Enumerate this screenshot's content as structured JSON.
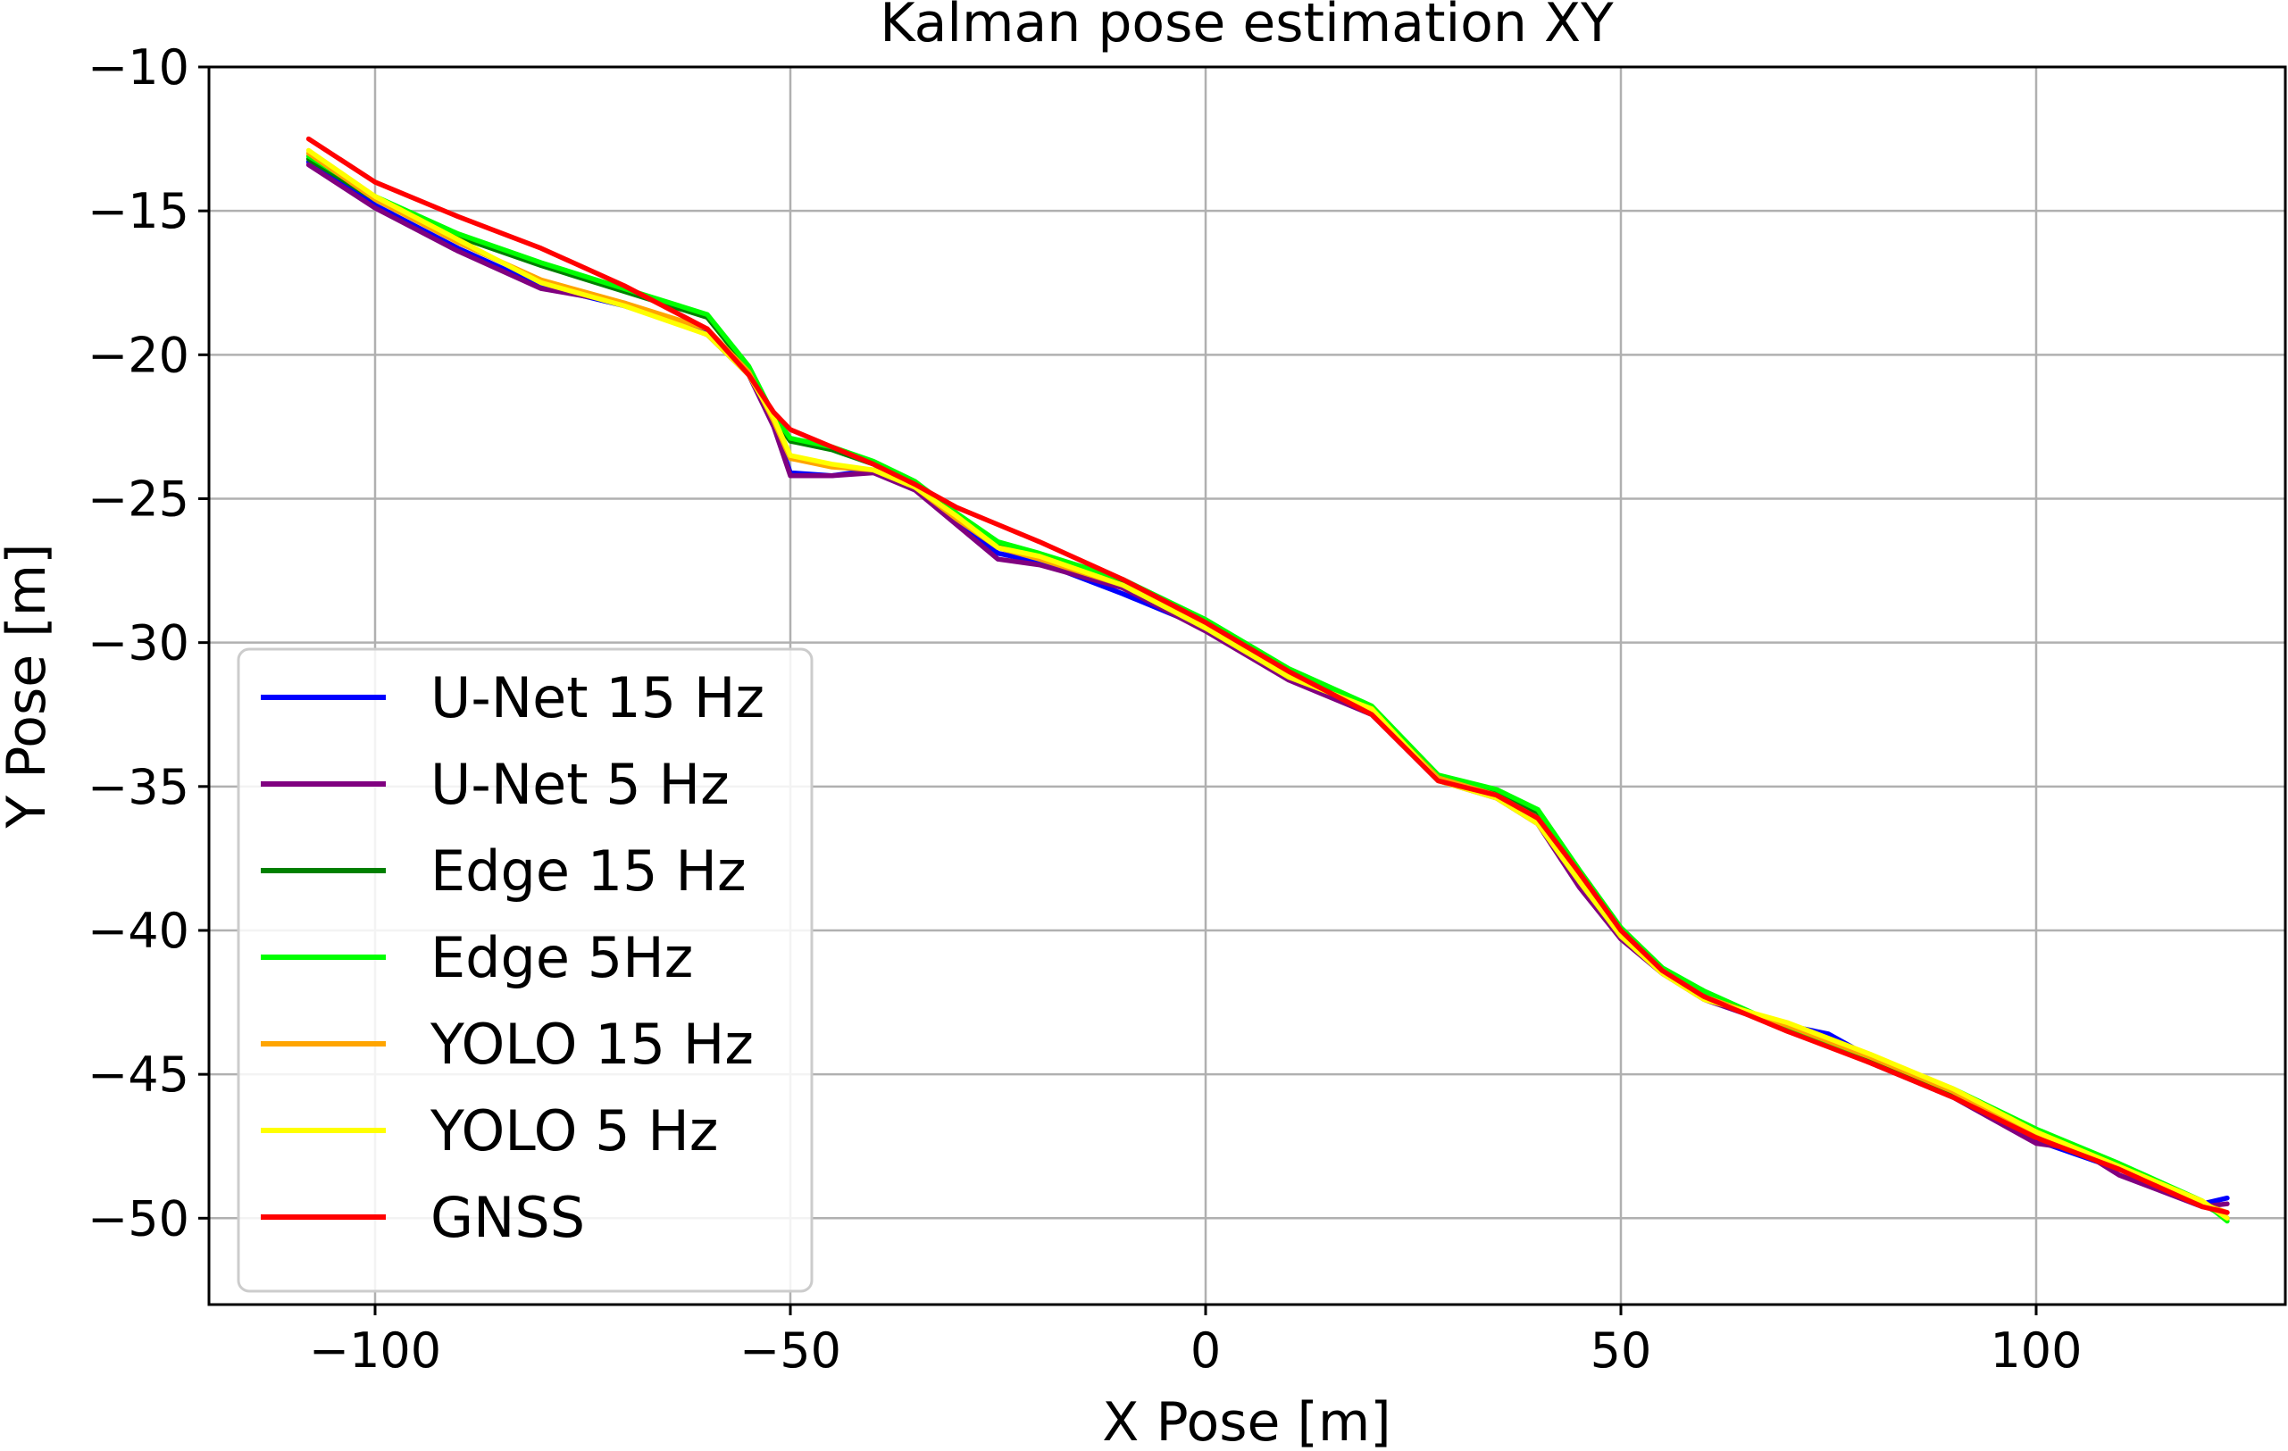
{
  "chart_data": {
    "type": "line",
    "title": "Kalman pose estimation XY",
    "xlabel": "X Pose [m]",
    "ylabel": "Y Pose [m]",
    "xlim": [
      -120,
      130
    ],
    "ylim": [
      -53,
      -10
    ],
    "xticks": [
      -100,
      -50,
      0,
      50,
      100
    ],
    "yticks": [
      -10,
      -15,
      -20,
      -25,
      -30,
      -35,
      -40,
      -45,
      -50
    ],
    "grid": true,
    "legend_position": "lower-left",
    "series": [
      {
        "name": "U-Net 15 Hz",
        "color": "#0000ff",
        "x": [
          -108,
          -100,
          -90,
          -80,
          -70,
          -60,
          -55,
          -52,
          -50,
          -45,
          -40,
          -35,
          -30,
          -25,
          -20,
          -10,
          0,
          10,
          20,
          28,
          35,
          40,
          45,
          50,
          55,
          60,
          70,
          75,
          80,
          90,
          100,
          110,
          120,
          123
        ],
        "y": [
          -13.3,
          -14.8,
          -16.3,
          -17.6,
          -18.3,
          -19.2,
          -20.6,
          -22.4,
          -24.1,
          -24.2,
          -24.0,
          -24.6,
          -25.7,
          -26.9,
          -27.2,
          -28.3,
          -29.5,
          -31.2,
          -32.5,
          -34.7,
          -35.3,
          -36.2,
          -38.3,
          -40.2,
          -41.5,
          -42.3,
          -43.3,
          -43.6,
          -44.4,
          -45.7,
          -47.3,
          -48.3,
          -49.5,
          -49.3
        ]
      },
      {
        "name": "U-Net 5 Hz",
        "color": "#800080",
        "x": [
          -108,
          -100,
          -90,
          -80,
          -70,
          -60,
          -55,
          -52,
          -50,
          -45,
          -40,
          -35,
          -30,
          -25,
          -20,
          -10,
          0,
          10,
          20,
          28,
          35,
          40,
          45,
          50,
          55,
          60,
          70,
          80,
          90,
          100,
          105,
          110,
          120,
          123
        ],
        "y": [
          -13.4,
          -14.9,
          -16.4,
          -17.7,
          -18.2,
          -19.3,
          -20.7,
          -22.5,
          -24.2,
          -24.2,
          -24.1,
          -24.7,
          -25.9,
          -27.1,
          -27.3,
          -28.1,
          -29.6,
          -31.3,
          -32.5,
          -34.8,
          -35.4,
          -36.3,
          -38.5,
          -40.3,
          -41.5,
          -42.4,
          -43.4,
          -44.6,
          -45.8,
          -47.4,
          -47.6,
          -48.5,
          -49.6,
          -49.5
        ]
      },
      {
        "name": "Edge 15 Hz",
        "color": "#008000",
        "x": [
          -108,
          -100,
          -90,
          -80,
          -70,
          -60,
          -55,
          -52,
          -50,
          -45,
          -40,
          -35,
          -30,
          -25,
          -20,
          -10,
          0,
          10,
          20,
          28,
          35,
          40,
          45,
          50,
          55,
          60,
          70,
          80,
          90,
          100,
          110,
          120,
          123
        ],
        "y": [
          -13.2,
          -14.6,
          -15.9,
          -16.9,
          -17.8,
          -18.7,
          -20.5,
          -22.2,
          -23.0,
          -23.3,
          -23.8,
          -24.5,
          -25.6,
          -26.6,
          -27.0,
          -27.9,
          -29.3,
          -31.0,
          -32.3,
          -34.7,
          -35.2,
          -35.9,
          -38.0,
          -40.0,
          -41.4,
          -42.2,
          -43.5,
          -44.5,
          -45.7,
          -47.0,
          -48.2,
          -49.5,
          -50.0
        ]
      },
      {
        "name": "Edge 5Hz",
        "color": "#00ff00",
        "x": [
          -108,
          -100,
          -90,
          -80,
          -70,
          -60,
          -55,
          -52,
          -50,
          -45,
          -40,
          -35,
          -30,
          -25,
          -20,
          -10,
          0,
          10,
          20,
          28,
          35,
          40,
          45,
          50,
          55,
          60,
          70,
          80,
          90,
          100,
          110,
          120,
          123
        ],
        "y": [
          -13.1,
          -14.5,
          -15.8,
          -16.8,
          -17.7,
          -18.6,
          -20.4,
          -22.1,
          -22.9,
          -23.2,
          -23.7,
          -24.4,
          -25.5,
          -26.5,
          -26.9,
          -27.8,
          -29.2,
          -30.9,
          -32.2,
          -34.6,
          -35.1,
          -35.8,
          -37.9,
          -39.9,
          -41.3,
          -42.1,
          -43.4,
          -44.4,
          -45.5,
          -46.9,
          -48.1,
          -49.4,
          -50.1
        ]
      },
      {
        "name": "YOLO 15 Hz",
        "color": "#ffa500",
        "x": [
          -108,
          -100,
          -90,
          -80,
          -70,
          -60,
          -55,
          -52,
          -50,
          -45,
          -40,
          -35,
          -30,
          -25,
          -20,
          -10,
          0,
          10,
          20,
          28,
          35,
          40,
          45,
          50,
          55,
          60,
          70,
          80,
          90,
          100,
          110,
          120,
          123
        ],
        "y": [
          -13.0,
          -14.6,
          -16.1,
          -17.4,
          -18.2,
          -19.1,
          -20.6,
          -22.3,
          -23.6,
          -23.9,
          -24.0,
          -24.6,
          -25.7,
          -26.7,
          -27.1,
          -28.0,
          -29.4,
          -31.1,
          -32.4,
          -34.7,
          -35.3,
          -36.1,
          -38.2,
          -40.1,
          -41.4,
          -42.3,
          -43.3,
          -44.4,
          -45.6,
          -47.1,
          -48.3,
          -49.5,
          -49.8
        ]
      },
      {
        "name": "YOLO 5 Hz",
        "color": "#ffff00",
        "x": [
          -108,
          -100,
          -90,
          -80,
          -70,
          -60,
          -55,
          -52,
          -50,
          -45,
          -40,
          -35,
          -30,
          -25,
          -20,
          -10,
          0,
          10,
          20,
          28,
          35,
          40,
          45,
          50,
          55,
          60,
          70,
          80,
          90,
          100,
          110,
          120,
          123
        ],
        "y": [
          -12.9,
          -14.5,
          -16.0,
          -17.5,
          -18.3,
          -19.3,
          -20.7,
          -22.2,
          -23.5,
          -23.8,
          -24.0,
          -24.6,
          -25.6,
          -26.7,
          -27.0,
          -28.0,
          -29.5,
          -31.2,
          -32.3,
          -34.8,
          -35.4,
          -36.3,
          -38.3,
          -40.2,
          -41.5,
          -42.4,
          -43.2,
          -44.3,
          -45.5,
          -47.0,
          -48.2,
          -49.4,
          -50.0
        ]
      },
      {
        "name": "GNSS",
        "color": "#ff0000",
        "x": [
          -108,
          -100,
          -90,
          -80,
          -70,
          -60,
          -55,
          -52,
          -50,
          -45,
          -40,
          -35,
          -30,
          -25,
          -20,
          -10,
          0,
          10,
          20,
          28,
          35,
          40,
          45,
          50,
          55,
          60,
          70,
          80,
          90,
          100,
          110,
          120,
          123
        ],
        "y": [
          -12.5,
          -14.0,
          -15.2,
          -16.3,
          -17.6,
          -19.1,
          -20.7,
          -22.0,
          -22.6,
          -23.2,
          -23.8,
          -24.5,
          -25.3,
          -25.9,
          -26.5,
          -27.8,
          -29.3,
          -31.0,
          -32.5,
          -34.8,
          -35.3,
          -36.1,
          -38.0,
          -40.0,
          -41.4,
          -42.3,
          -43.5,
          -44.6,
          -45.8,
          -47.2,
          -48.3,
          -49.6,
          -49.8
        ]
      }
    ]
  }
}
